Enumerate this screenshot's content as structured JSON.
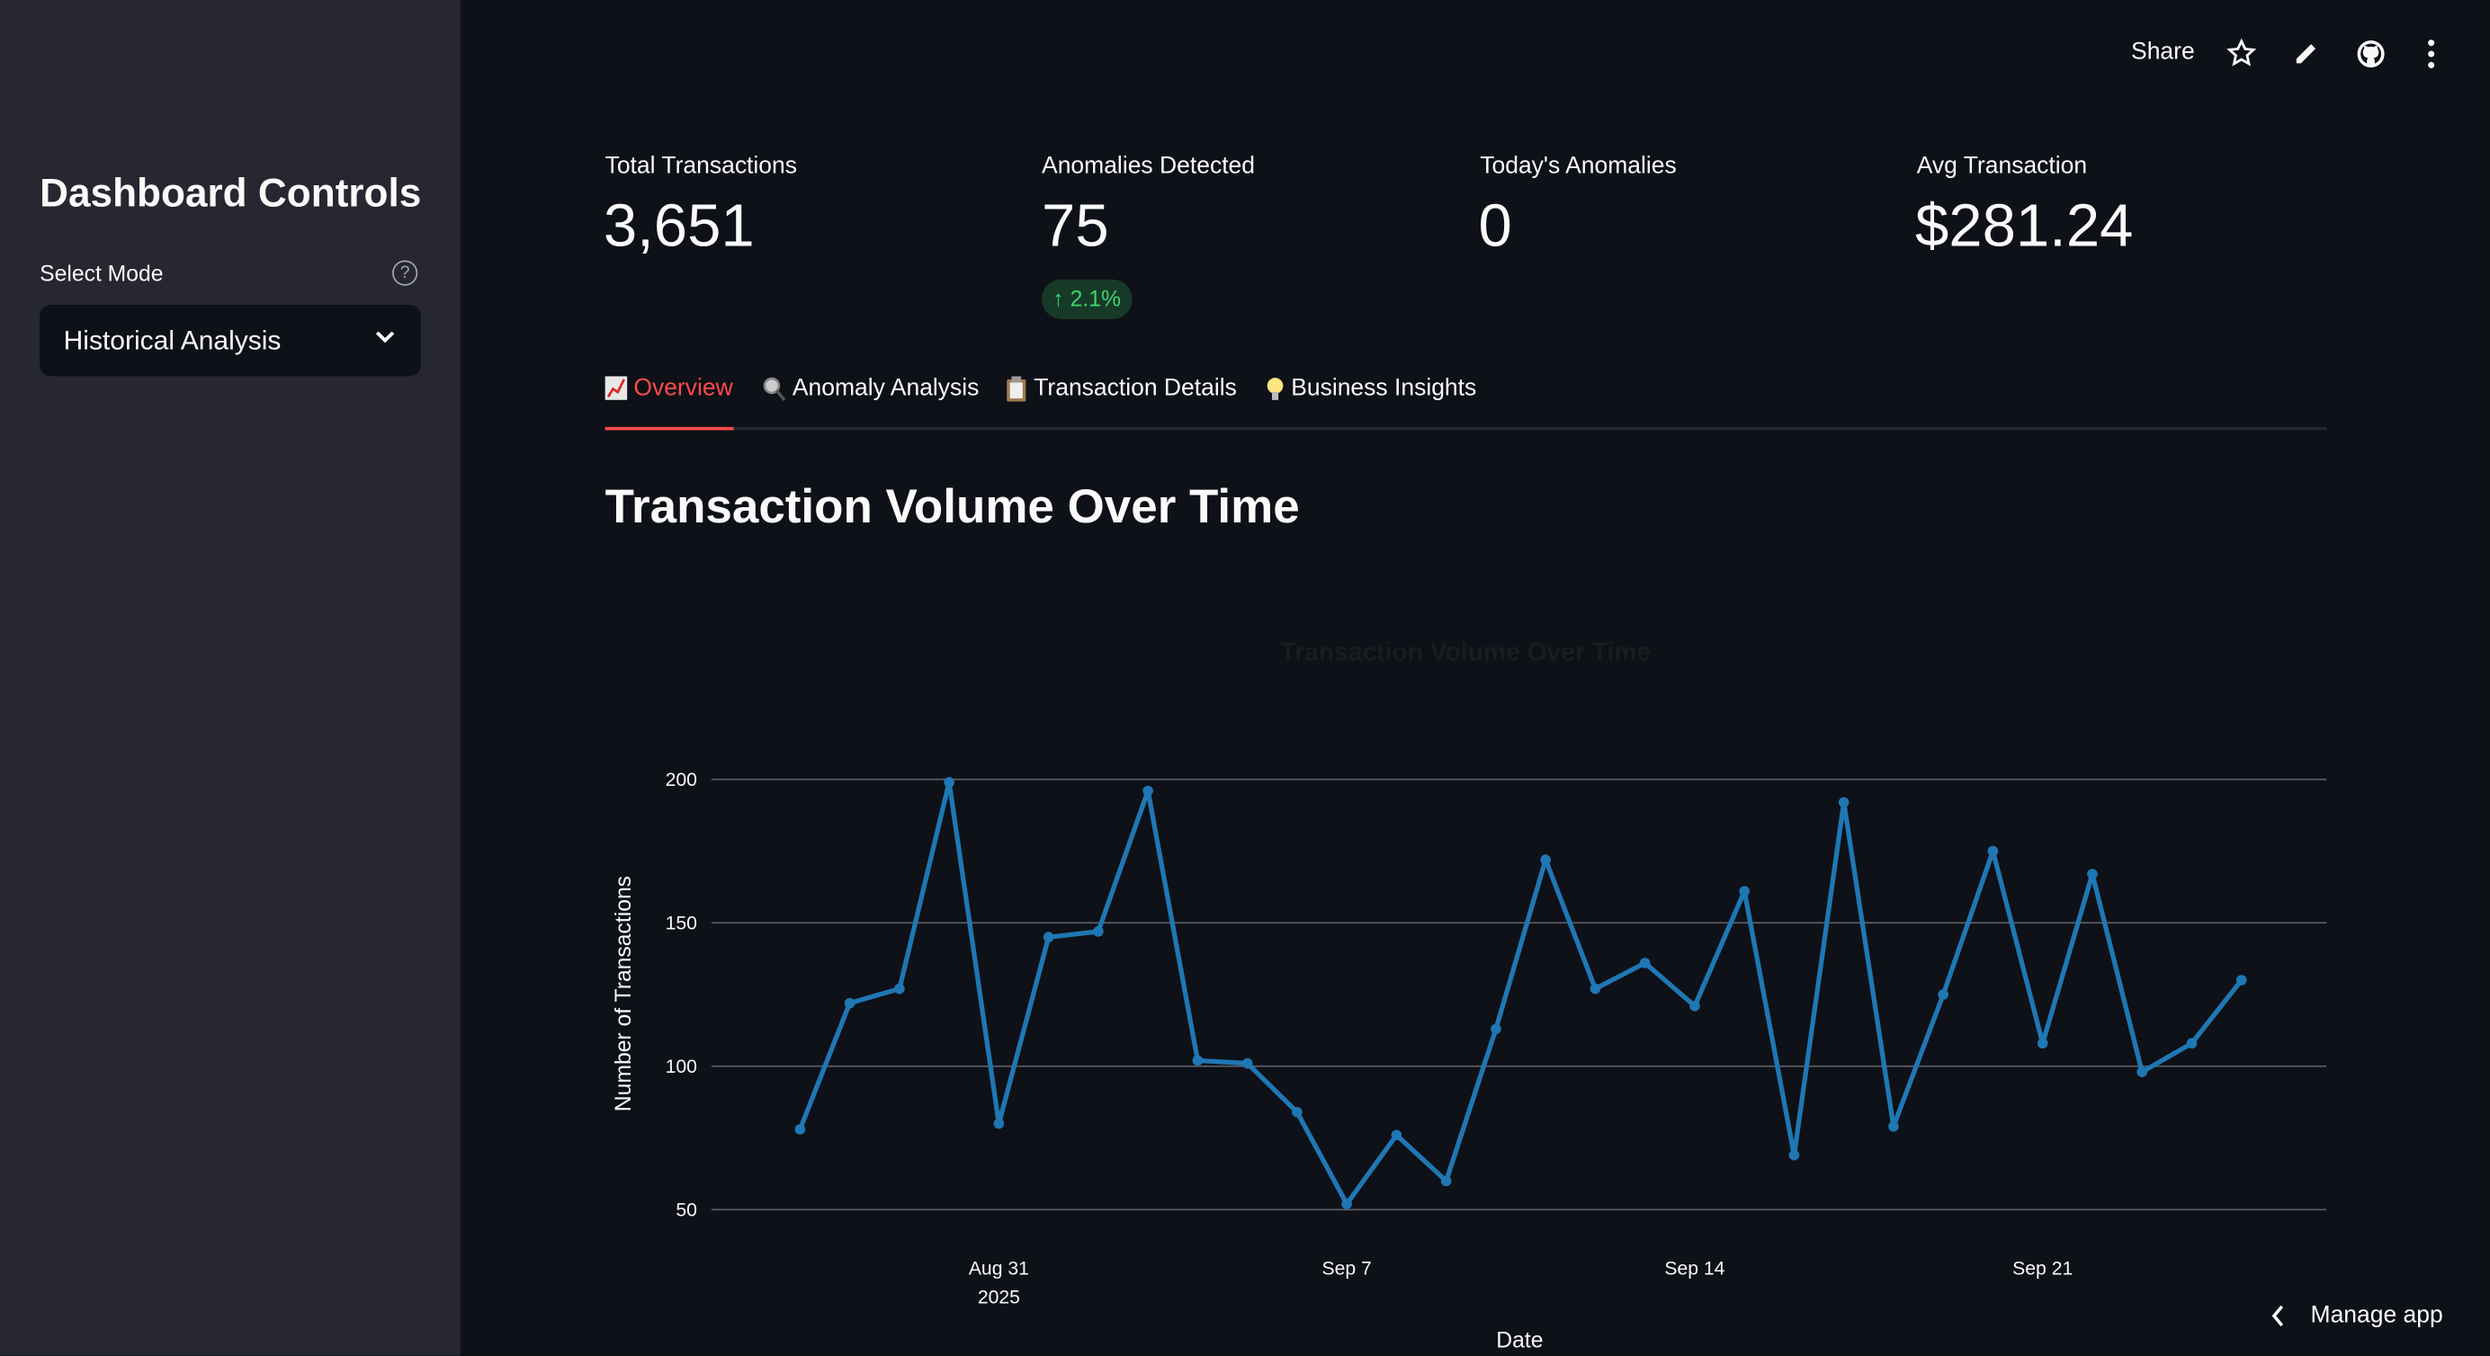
{
  "sidebar": {
    "title": "Dashboard Controls",
    "mode_label": "Select Mode",
    "help_icon": "?",
    "mode_value": "Historical Analysis"
  },
  "header": {
    "share": "Share",
    "icons": [
      "star-icon",
      "pencil-icon",
      "github-icon",
      "kebab-menu-icon"
    ]
  },
  "metrics": [
    {
      "label": "Total Transactions",
      "value": "3,651"
    },
    {
      "label": "Anomalies Detected",
      "value": "75",
      "delta": "↑ 2.1%"
    },
    {
      "label": "Today's Anomalies",
      "value": "0"
    },
    {
      "label": "Avg Transaction",
      "value": "$281.24"
    }
  ],
  "tabs": [
    {
      "label": "Overview",
      "icon": "chart-increasing-icon",
      "active": true
    },
    {
      "label": "Anomaly Analysis",
      "icon": "magnifier-icon"
    },
    {
      "label": "Transaction Details",
      "icon": "clipboard-icon"
    },
    {
      "label": "Business Insights",
      "icon": "light-bulb-icon"
    }
  ],
  "section_title": "Transaction Volume Over Time",
  "chart_data": {
    "type": "line",
    "title": "Transaction Volume Over Time",
    "xlabel": "Date",
    "ylabel": "Number of Transactions",
    "x_start": "2025-08-27",
    "x": [
      "2025-08-27",
      "2025-08-28",
      "2025-08-29",
      "2025-08-30",
      "2025-08-31",
      "2025-09-01",
      "2025-09-02",
      "2025-09-03",
      "2025-09-04",
      "2025-09-05",
      "2025-09-06",
      "2025-09-07",
      "2025-09-08",
      "2025-09-09",
      "2025-09-10",
      "2025-09-11",
      "2025-09-12",
      "2025-09-13",
      "2025-09-14",
      "2025-09-15",
      "2025-09-16",
      "2025-09-17",
      "2025-09-18",
      "2025-09-19",
      "2025-09-20",
      "2025-09-21",
      "2025-09-22",
      "2025-09-23",
      "2025-09-24",
      "2025-09-25"
    ],
    "values": [
      78,
      122,
      127,
      199,
      80,
      145,
      147,
      196,
      102,
      101,
      84,
      52,
      76,
      60,
      113,
      172,
      127,
      136,
      121,
      161,
      69,
      192,
      79,
      125,
      175,
      108,
      167,
      98,
      108,
      130
    ],
    "yticks": [
      "50",
      "100",
      "150",
      "200"
    ],
    "ytick_values": [
      50,
      100,
      150,
      200
    ],
    "xticks": [
      {
        "date": "2025-08-31",
        "label": "Aug 31",
        "sub": "2025"
      },
      {
        "date": "2025-09-07",
        "label": "Sep 7"
      },
      {
        "date": "2025-09-14",
        "label": "Sep 14"
      },
      {
        "date": "2025-09-21",
        "label": "Sep 21"
      }
    ],
    "grid": true,
    "color": "#1f77b4"
  },
  "footer": {
    "manage": "Manage app"
  },
  "colors": {
    "accent": "#ff4b4b",
    "sidebar": "#262730",
    "background": "#0e1117",
    "delta": "#3dd56d"
  }
}
